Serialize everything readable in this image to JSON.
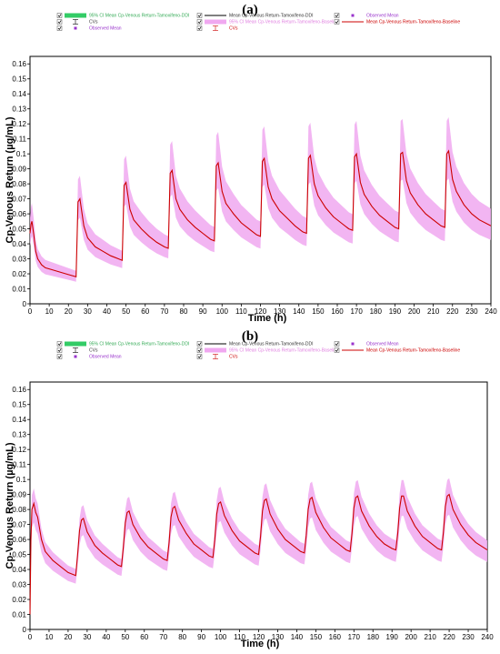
{
  "chart_data": [
    {
      "panel_label": "(a)",
      "type": "line",
      "xlabel": "Time (h)",
      "ylabel": "Cp-Venous Return (µg/mL)",
      "xlim": [
        0,
        240
      ],
      "ylim": [
        0,
        0.165
      ],
      "x_ticks": [
        "0",
        "10",
        "20",
        "30",
        "40",
        "50",
        "60",
        "70",
        "80",
        "90",
        "100",
        "110",
        "120",
        "130",
        "140",
        "150",
        "160",
        "170",
        "180",
        "190",
        "200",
        "210",
        "220",
        "230",
        "240"
      ],
      "y_ticks": [
        "0",
        "0.01",
        "0.02",
        "0.03",
        "0.04",
        "0.05",
        "0.06",
        "0.07",
        "0.08",
        "0.09",
        "0.1",
        "0.11",
        "0.12",
        "0.13",
        "0.14",
        "0.15",
        "0.16"
      ],
      "legend": {
        "placement": "top",
        "entries": [
          {
            "label": "95% CI Mean Cp-Venous Return-Tamoxifeno-DDI",
            "color": "#33cc66",
            "kind": "band"
          },
          {
            "label": "Mean Cp-Venous Return-Tamoxifeno-DDI",
            "color": "#000000",
            "kind": "line"
          },
          {
            "label": "Observed Mean",
            "color": "#9933cc",
            "kind": "marker"
          },
          {
            "label": "CVs",
            "color": "#000000",
            "kind": "errorbar"
          },
          {
            "label": "95% CI Mean Cp-Venous Return-Tamoxifeno-Baseline",
            "color": "#f0a8f0",
            "kind": "band"
          },
          {
            "label": "Mean Cp-Venous Return-Tamoxifeno-Baseline",
            "color": "#cc0000",
            "kind": "line"
          },
          {
            "label": "Observed Mean",
            "color": "#9933cc",
            "kind": "marker"
          },
          {
            "label": "CVs",
            "color": "#cc0000",
            "kind": "errorbar"
          }
        ]
      },
      "series": [
        {
          "name": "Mean Cp-Venous Return-Tamoxifeno-Baseline",
          "color": "#cc0000",
          "band_color": "#f0a8f0",
          "x": [
            0,
            0.5,
            1,
            2,
            3,
            4,
            6,
            8,
            12,
            16,
            20,
            24,
            25,
            26,
            28,
            30,
            34,
            38,
            42,
            46,
            48,
            49,
            50,
            52,
            54,
            58,
            62,
            66,
            70,
            72,
            73,
            74,
            76,
            78,
            82,
            86,
            90,
            94,
            96,
            97,
            98,
            100,
            102,
            106,
            110,
            114,
            118,
            120,
            121,
            122,
            124,
            126,
            130,
            134,
            138,
            142,
            144,
            145,
            146,
            148,
            150,
            154,
            158,
            162,
            166,
            168,
            169,
            170,
            172,
            174,
            178,
            182,
            186,
            190,
            192,
            193,
            194,
            196,
            198,
            202,
            206,
            210,
            214,
            216,
            217,
            218,
            220,
            222,
            226,
            230,
            234,
            240
          ],
          "y": [
            0.047,
            0.053,
            0.055,
            0.046,
            0.035,
            0.03,
            0.026,
            0.024,
            0.0225,
            0.021,
            0.0195,
            0.018,
            0.068,
            0.07,
            0.052,
            0.044,
            0.038,
            0.035,
            0.032,
            0.03,
            0.029,
            0.079,
            0.081,
            0.063,
            0.056,
            0.05,
            0.045,
            0.041,
            0.038,
            0.037,
            0.087,
            0.089,
            0.07,
            0.063,
            0.056,
            0.051,
            0.047,
            0.043,
            0.042,
            0.092,
            0.094,
            0.075,
            0.067,
            0.06,
            0.054,
            0.05,
            0.046,
            0.045,
            0.095,
            0.097,
            0.078,
            0.07,
            0.062,
            0.057,
            0.052,
            0.048,
            0.047,
            0.097,
            0.099,
            0.08,
            0.072,
            0.064,
            0.058,
            0.054,
            0.05,
            0.049,
            0.098,
            0.1,
            0.081,
            0.073,
            0.065,
            0.059,
            0.055,
            0.051,
            0.05,
            0.1,
            0.101,
            0.082,
            0.074,
            0.066,
            0.06,
            0.056,
            0.052,
            0.051,
            0.1,
            0.102,
            0.083,
            0.075,
            0.066,
            0.06,
            0.056,
            0.052
          ],
          "band_lower_ratio": 0.82,
          "band_upper_ratio": 1.22
        }
      ]
    },
    {
      "panel_label": "(b)",
      "type": "line",
      "xlabel": "Time (h)",
      "ylabel": "Cp-Venous Return (µg/mL)",
      "xlim": [
        0,
        240
      ],
      "ylim": [
        0,
        0.165
      ],
      "x_ticks": [
        "0",
        "10",
        "20",
        "30",
        "40",
        "50",
        "60",
        "70",
        "80",
        "90",
        "100",
        "110",
        "120",
        "130",
        "140",
        "150",
        "160",
        "170",
        "180",
        "190",
        "200",
        "210",
        "220",
        "230",
        "240"
      ],
      "y_ticks": [
        "0",
        "0.01",
        "0.02",
        "0.03",
        "0.04",
        "0.05",
        "0.06",
        "0.07",
        "0.08",
        "0.09",
        "0.1",
        "0.11",
        "0.12",
        "0.13",
        "0.14",
        "0.15",
        "0.16"
      ],
      "legend": {
        "placement": "top",
        "entries": [
          {
            "label": "95% CI Mean Cp-Venous Return-Tamoxifeno-DDI",
            "color": "#33cc66",
            "kind": "band"
          },
          {
            "label": "Mean Cp-Venous Return-Tamoxifeno-DDI",
            "color": "#000000",
            "kind": "line"
          },
          {
            "label": "Observed Mean",
            "color": "#9933cc",
            "kind": "marker"
          },
          {
            "label": "CVs",
            "color": "#000000",
            "kind": "errorbar"
          },
          {
            "label": "95% CI Mean Cp-Venous Return-Tamoxifeno-Baseline",
            "color": "#f0a8f0",
            "kind": "band"
          },
          {
            "label": "Mean Cp-Venous Return-Tamoxifeno-Baseline",
            "color": "#cc0000",
            "kind": "line"
          },
          {
            "label": "Observed Mean",
            "color": "#9933cc",
            "kind": "marker"
          },
          {
            "label": "CVs",
            "color": "#cc0000",
            "kind": "errorbar"
          }
        ]
      },
      "series": [
        {
          "name": "Mean Cp-Venous Return-Tamoxifeno-Baseline",
          "color": "#cc0000",
          "band_color": "#f0a8f0",
          "x": [
            0,
            0.5,
            1,
            2,
            3,
            4,
            6,
            8,
            12,
            16,
            20,
            24,
            25,
            26,
            27,
            28,
            30,
            34,
            38,
            42,
            46,
            48,
            49,
            50,
            51,
            52,
            54,
            58,
            62,
            66,
            70,
            72,
            73,
            74,
            75,
            76,
            78,
            82,
            86,
            90,
            94,
            96,
            97,
            98,
            99,
            100,
            102,
            106,
            110,
            114,
            118,
            120,
            121,
            122,
            123,
            124,
            126,
            130,
            134,
            138,
            142,
            144,
            145,
            146,
            147,
            148,
            150,
            154,
            158,
            162,
            166,
            168,
            169,
            170,
            171,
            172,
            174,
            178,
            182,
            186,
            190,
            192,
            193,
            194,
            195,
            196,
            198,
            202,
            206,
            210,
            214,
            216,
            217,
            218,
            219,
            220,
            222,
            226,
            230,
            234,
            240
          ],
          "y": [
            0.01,
            0.06,
            0.08,
            0.084,
            0.078,
            0.075,
            0.06,
            0.052,
            0.046,
            0.042,
            0.038,
            0.036,
            0.05,
            0.066,
            0.073,
            0.074,
            0.065,
            0.056,
            0.051,
            0.047,
            0.043,
            0.042,
            0.055,
            0.071,
            0.078,
            0.079,
            0.07,
            0.061,
            0.055,
            0.051,
            0.047,
            0.046,
            0.058,
            0.075,
            0.081,
            0.082,
            0.073,
            0.064,
            0.057,
            0.053,
            0.049,
            0.048,
            0.06,
            0.077,
            0.084,
            0.085,
            0.076,
            0.066,
            0.059,
            0.055,
            0.051,
            0.05,
            0.062,
            0.079,
            0.086,
            0.087,
            0.077,
            0.067,
            0.06,
            0.056,
            0.052,
            0.051,
            0.063,
            0.08,
            0.087,
            0.088,
            0.078,
            0.068,
            0.061,
            0.057,
            0.053,
            0.052,
            0.064,
            0.081,
            0.088,
            0.089,
            0.079,
            0.069,
            0.062,
            0.057,
            0.054,
            0.053,
            0.064,
            0.081,
            0.089,
            0.089,
            0.079,
            0.069,
            0.062,
            0.058,
            0.054,
            0.053,
            0.065,
            0.082,
            0.089,
            0.09,
            0.08,
            0.07,
            0.063,
            0.058,
            0.053
          ],
          "band_lower_ratio": 0.85,
          "band_upper_ratio": 1.12
        }
      ]
    }
  ]
}
